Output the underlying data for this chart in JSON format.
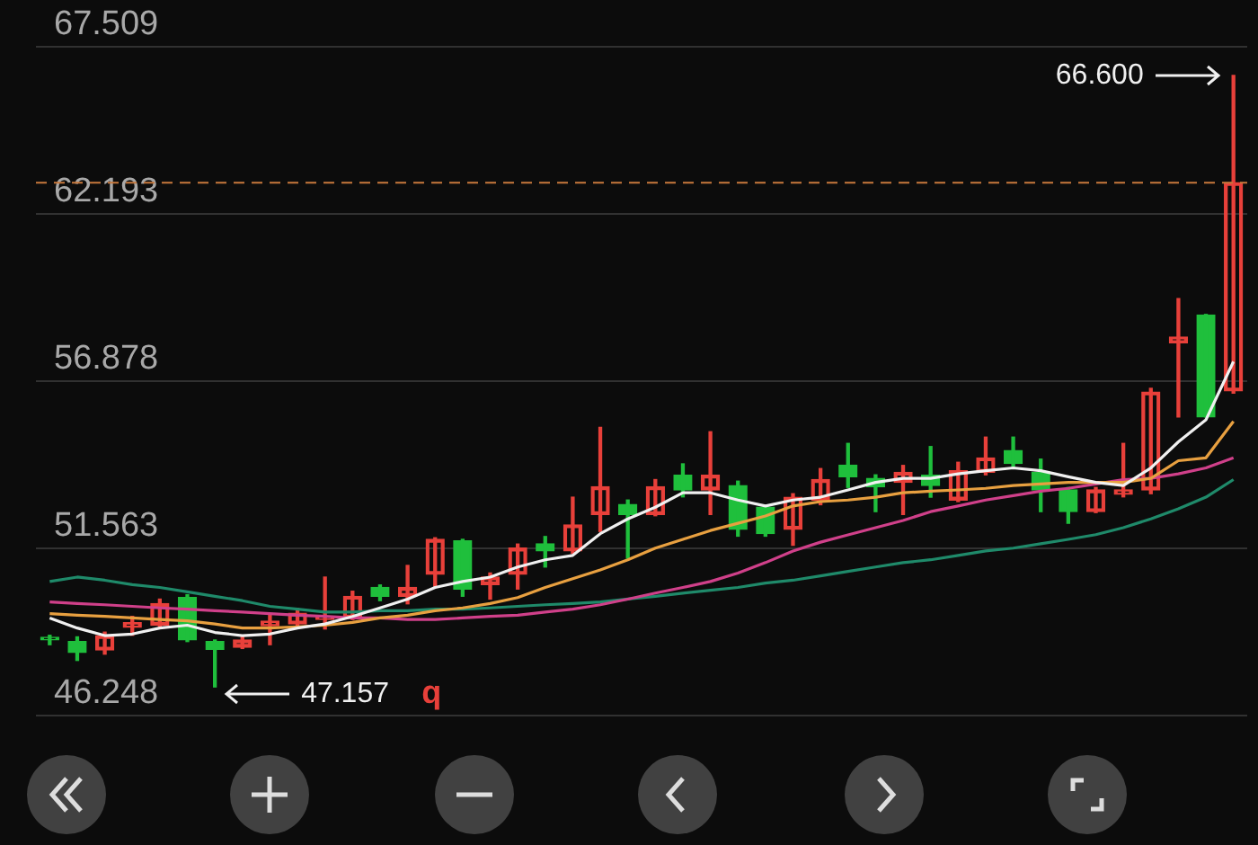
{
  "chart_data": {
    "type": "candlestick",
    "categories": [
      null,
      null,
      null,
      null,
      null,
      null,
      null,
      null,
      null,
      null,
      null,
      null,
      null,
      null,
      null,
      null,
      null,
      null,
      null,
      null,
      null,
      null,
      null,
      null,
      null,
      null,
      null,
      null,
      null,
      null,
      null,
      null,
      null,
      null,
      null,
      null,
      null,
      null,
      null,
      null,
      null,
      null,
      null,
      null
    ],
    "ohlc": [
      [
        48.65,
        48.8,
        48.5,
        48.65
      ],
      [
        48.6,
        48.75,
        48.0,
        48.25
      ],
      [
        48.33,
        48.9,
        48.2,
        48.79
      ],
      [
        49.05,
        49.4,
        48.8,
        49.2
      ],
      [
        49.12,
        49.95,
        49.05,
        49.81
      ],
      [
        50.0,
        50.09,
        48.6,
        48.65
      ],
      [
        48.6,
        48.65,
        47.157,
        48.35
      ],
      [
        48.42,
        48.75,
        48.38,
        48.65
      ],
      [
        49.1,
        49.45,
        48.5,
        49.25
      ],
      [
        49.16,
        49.65,
        49.1,
        49.5
      ],
      [
        49.3,
        50.65,
        49.0,
        49.4
      ],
      [
        49.35,
        50.2,
        49.3,
        50.04
      ],
      [
        50.32,
        50.4,
        49.9,
        50.04
      ],
      [
        50.04,
        51.02,
        49.8,
        50.32
      ],
      [
        50.74,
        51.9,
        50.32,
        51.85
      ],
      [
        51.8,
        51.85,
        50.04,
        50.27
      ],
      [
        50.41,
        50.78,
        49.95,
        50.65
      ],
      [
        50.74,
        51.7,
        50.27,
        51.57
      ],
      [
        51.71,
        51.94,
        50.97,
        51.48
      ],
      [
        51.48,
        53.19,
        51.4,
        52.31
      ],
      [
        52.64,
        55.41,
        52.1,
        53.52
      ],
      [
        52.96,
        53.1,
        51.25,
        52.64
      ],
      [
        52.64,
        53.75,
        52.6,
        53.52
      ],
      [
        53.89,
        54.25,
        53.2,
        53.42
      ],
      [
        53.42,
        55.27,
        52.64,
        53.89
      ],
      [
        53.56,
        53.7,
        51.95,
        52.17
      ],
      [
        52.87,
        52.9,
        51.95,
        52.03
      ],
      [
        52.17,
        53.3,
        51.66,
        53.19
      ],
      [
        53.1,
        54.1,
        52.95,
        53.75
      ],
      [
        54.21,
        54.9,
        53.5,
        53.84
      ],
      [
        53.79,
        53.9,
        52.73,
        53.52
      ],
      [
        53.66,
        54.2,
        52.64,
        53.98
      ],
      [
        53.89,
        54.8,
        53.19,
        53.56
      ],
      [
        53.1,
        54.3,
        53.05,
        54.03
      ],
      [
        53.98,
        55.1,
        53.9,
        54.44
      ],
      [
        54.67,
        55.1,
        54.1,
        54.26
      ],
      [
        53.98,
        54.4,
        52.73,
        53.42
      ],
      [
        53.42,
        53.5,
        52.36,
        52.73
      ],
      [
        52.73,
        53.5,
        52.7,
        53.42
      ],
      [
        53.28,
        54.9,
        53.2,
        53.42
      ],
      [
        53.42,
        56.65,
        53.3,
        56.53
      ],
      [
        58.1,
        59.5,
        55.74,
        58.28
      ],
      [
        58.98,
        59.0,
        55.74,
        55.74
      ],
      [
        56.57,
        66.6,
        56.5,
        63.19
      ]
    ],
    "colors": [
      "#1fbf3c",
      "#1fbf3c",
      "#e8403a",
      "#e8403a",
      "#e8403a",
      "#1fbf3c",
      "#1fbf3c",
      "#e8403a",
      "#e8403a",
      "#e8403a",
      "#e8403a",
      "#e8403a",
      "#1fbf3c",
      "#e8403a",
      "#e8403a",
      "#1fbf3c",
      "#e8403a",
      "#e8403a",
      "#1fbf3c",
      "#e8403a",
      "#e8403a",
      "#1fbf3c",
      "#e8403a",
      "#1fbf3c",
      "#e8403a",
      "#1fbf3c",
      "#1fbf3c",
      "#e8403a",
      "#e8403a",
      "#1fbf3c",
      "#1fbf3c",
      "#e8403a",
      "#1fbf3c",
      "#e8403a",
      "#e8403a",
      "#1fbf3c",
      "#1fbf3c",
      "#1fbf3c",
      "#e8403a",
      "#e8403a",
      "#e8403a",
      "#e8403a",
      "#1fbf3c",
      "#e8403a"
    ],
    "series": [
      {
        "type": "line",
        "color": "#f0f0f0",
        "values": [
          49.35,
          49.03,
          48.79,
          48.84,
          49.03,
          49.12,
          48.89,
          48.79,
          48.84,
          49.03,
          49.16,
          49.4,
          49.67,
          49.95,
          50.32,
          50.51,
          50.65,
          50.97,
          51.2,
          51.34,
          52.03,
          52.5,
          52.87,
          53.33,
          53.33,
          53.1,
          52.91,
          53.1,
          53.19,
          53.42,
          53.66,
          53.79,
          53.79,
          53.93,
          54.03,
          54.12,
          54.03,
          53.84,
          53.66,
          53.56,
          54.12,
          54.95,
          55.65,
          57.5
        ]
      },
      {
        "type": "line",
        "color": "#e8a040",
        "values": [
          49.49,
          49.44,
          49.4,
          49.35,
          49.3,
          49.26,
          49.16,
          49.03,
          49.03,
          49.07,
          49.12,
          49.21,
          49.35,
          49.44,
          49.58,
          49.67,
          49.81,
          50.0,
          50.32,
          50.6,
          50.88,
          51.2,
          51.57,
          51.85,
          52.13,
          52.36,
          52.59,
          52.91,
          53.05,
          53.1,
          53.19,
          53.33,
          53.38,
          53.42,
          53.47,
          53.56,
          53.61,
          53.66,
          53.66,
          53.66,
          53.79,
          54.35,
          54.44,
          55.6
        ]
      },
      {
        "type": "line",
        "color": "#d0408a",
        "values": [
          49.86,
          49.81,
          49.77,
          49.72,
          49.67,
          49.63,
          49.58,
          49.54,
          49.49,
          49.44,
          49.4,
          49.35,
          49.35,
          49.3,
          49.3,
          49.35,
          49.4,
          49.44,
          49.54,
          49.63,
          49.77,
          49.95,
          50.14,
          50.32,
          50.51,
          50.78,
          51.11,
          51.48,
          51.76,
          51.99,
          52.22,
          52.45,
          52.73,
          52.91,
          53.1,
          53.24,
          53.38,
          53.47,
          53.61,
          53.75,
          53.79,
          53.93,
          54.12,
          54.44
        ]
      },
      {
        "type": "line",
        "color": "#1f8a6a",
        "values": [
          50.51,
          50.65,
          50.55,
          50.41,
          50.32,
          50.18,
          50.04,
          49.9,
          49.72,
          49.63,
          49.54,
          49.54,
          49.58,
          49.58,
          49.63,
          49.63,
          49.67,
          49.72,
          49.77,
          49.81,
          49.86,
          49.95,
          50.04,
          50.14,
          50.23,
          50.32,
          50.46,
          50.55,
          50.69,
          50.83,
          50.97,
          51.11,
          51.2,
          51.34,
          51.48,
          51.57,
          51.71,
          51.85,
          52.0,
          52.22,
          52.5,
          52.82,
          53.19,
          53.75
        ]
      }
    ],
    "ylim": [
      46.248,
      67.509
    ],
    "yticks": [
      67.509,
      62.193,
      56.878,
      51.563,
      46.248
    ],
    "grid": "y",
    "tick_labels": "y",
    "ref_lines": [
      {
        "axis": "y",
        "value": 63.19,
        "color": "#c8783c",
        "line_style": "dashed"
      }
    ],
    "annotations": [
      "66.600",
      "47.157",
      "q"
    ]
  }
}
